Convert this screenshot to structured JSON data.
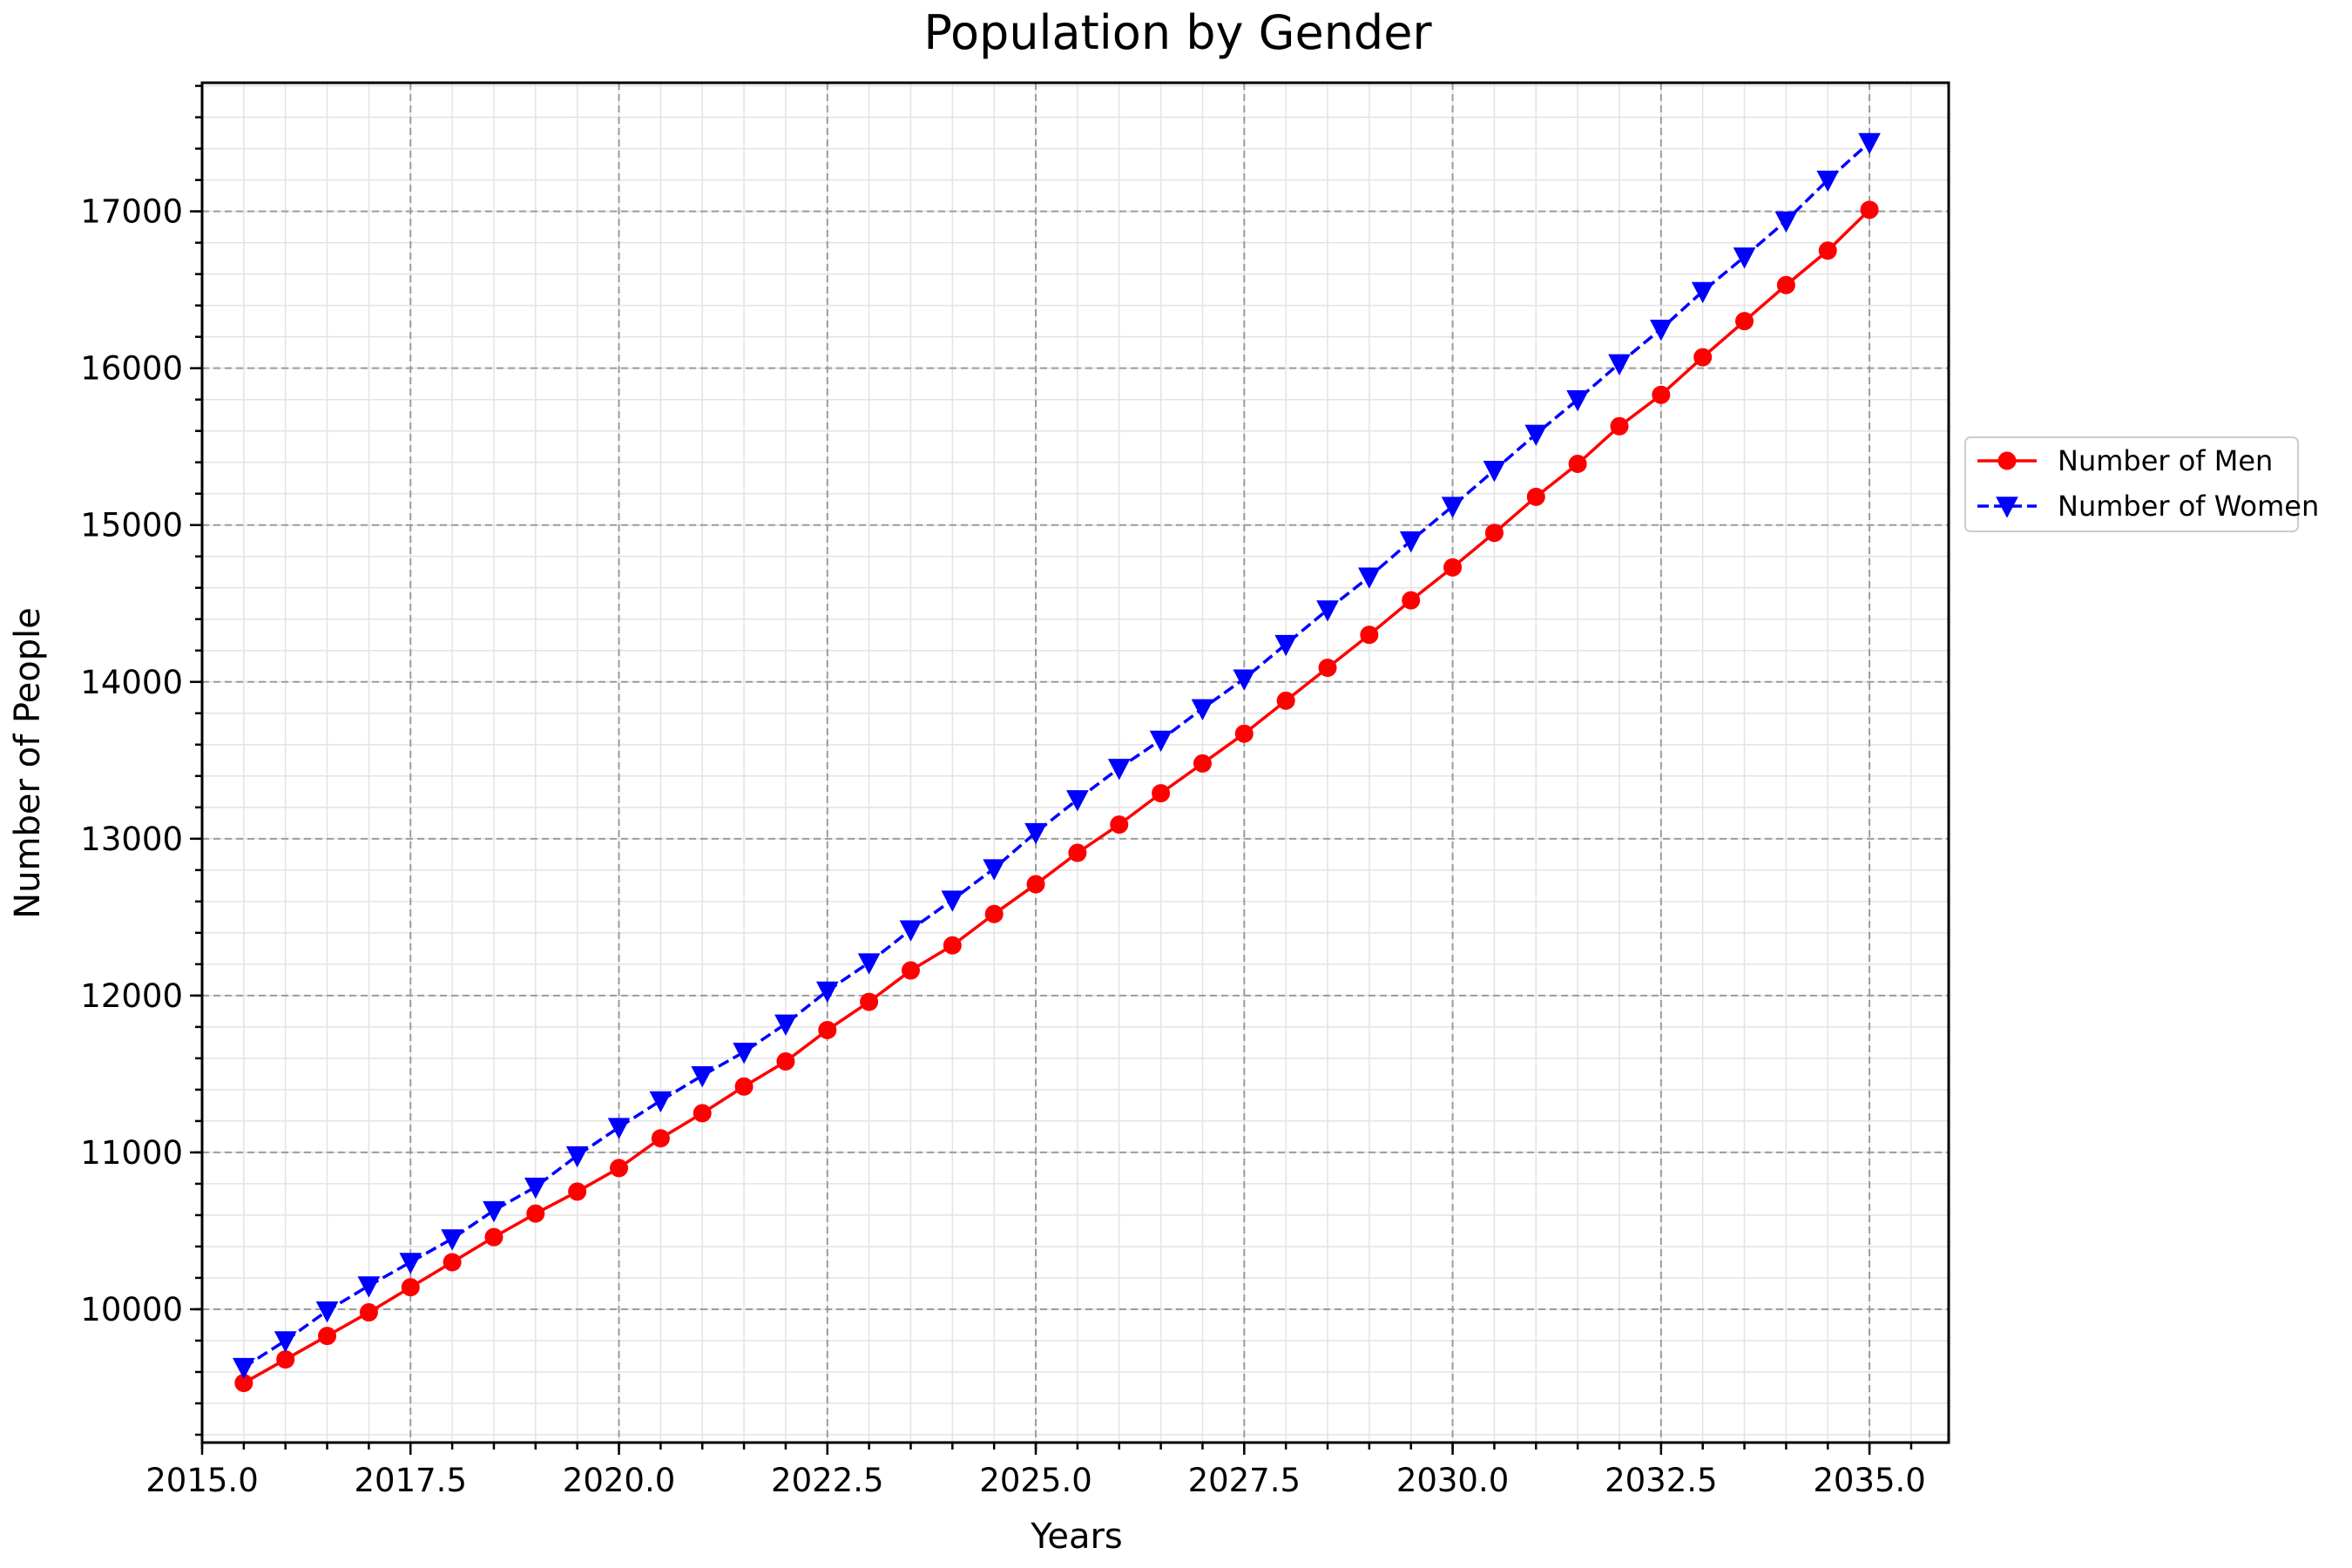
{
  "chart_data": {
    "type": "line",
    "title": "Population by Gender",
    "xlabel": "Years",
    "ylabel": "Number of People",
    "xlim": [
      2015.0,
      2035.95
    ],
    "ylim": [
      9150,
      17820
    ],
    "x_ticks": [
      "2015.0",
      "2017.5",
      "2020.0",
      "2022.5",
      "2025.0",
      "2027.5",
      "2030.0",
      "2032.5",
      "2035.0"
    ],
    "y_ticks": [
      "10000",
      "11000",
      "12000",
      "13000",
      "14000",
      "15000",
      "16000",
      "17000"
    ],
    "grid": true,
    "legend_position": "outside-right",
    "x": [
      2015.5,
      2016.0,
      2016.5,
      2017.0,
      2017.5,
      2018.0,
      2018.5,
      2019.0,
      2019.5,
      2020.0,
      2020.5,
      2021.0,
      2021.5,
      2022.0,
      2022.5,
      2023.0,
      2023.5,
      2024.0,
      2024.5,
      2025.0,
      2025.5,
      2026.0,
      2026.5,
      2027.0,
      2027.5,
      2028.0,
      2028.5,
      2029.0,
      2029.5,
      2030.0,
      2030.5,
      2031.0,
      2031.5,
      2032.0,
      2032.5,
      2033.0,
      2033.5,
      2034.0,
      2034.5,
      2035.0
    ],
    "series": [
      {
        "name": "Number of Men",
        "color": "#ff0000",
        "marker": "circle",
        "line_style": "solid",
        "values": [
          9530,
          9680,
          9830,
          9980,
          10140,
          10300,
          10460,
          10610,
          10750,
          10900,
          11090,
          11250,
          11420,
          11580,
          11780,
          11960,
          12160,
          12320,
          12520,
          12710,
          12910,
          13090,
          13290,
          13480,
          13670,
          13880,
          14090,
          14300,
          14520,
          14730,
          14950,
          15180,
          15390,
          15630,
          15830,
          16070,
          16300,
          16530,
          16750,
          17010
        ]
      },
      {
        "name": "Number of Women",
        "color": "#0000ff",
        "marker": "triangle-down",
        "line_style": "dashed",
        "values": [
          9630,
          9800,
          9990,
          10150,
          10300,
          10450,
          10630,
          10780,
          10980,
          11160,
          11330,
          11490,
          11640,
          11820,
          12030,
          12210,
          12420,
          12610,
          12810,
          13040,
          13250,
          13450,
          13630,
          13830,
          14020,
          14240,
          14460,
          14670,
          14900,
          15120,
          15350,
          15580,
          15800,
          16030,
          16250,
          16490,
          16710,
          16940,
          17200,
          17440
        ]
      }
    ]
  }
}
